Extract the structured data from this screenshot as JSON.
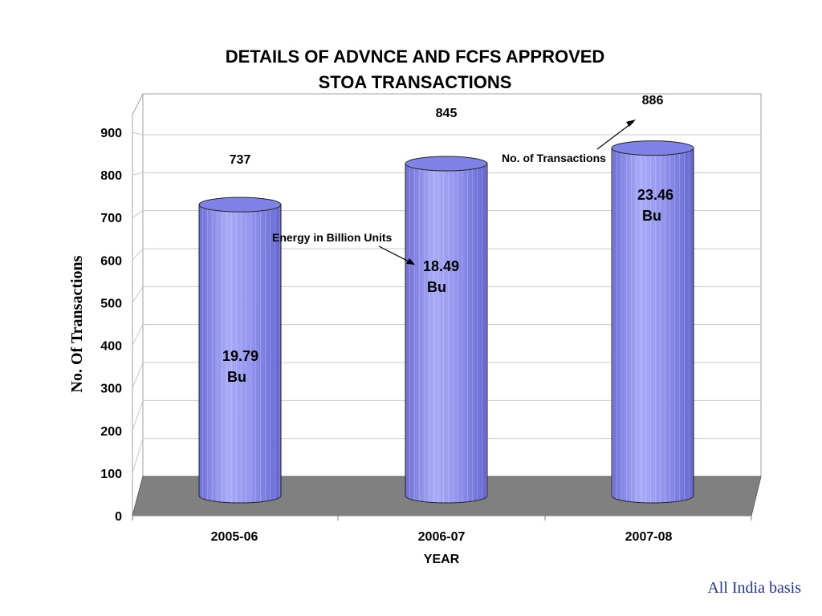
{
  "chart_data": {
    "type": "bar",
    "title": "DETAILS OF ADVNCE AND FCFS APPROVED STOA TRANSACTIONS",
    "title_lines": [
      "DETAILS OF ADVNCE AND FCFS APPROVED",
      "STOA TRANSACTIONS"
    ],
    "xlabel": "YEAR",
    "ylabel": "No. Of Transactions",
    "categories": [
      "2005-06",
      "2006-07",
      "2007-08"
    ],
    "values": [
      737,
      845,
      886
    ],
    "value_labels": [
      "737",
      "845",
      "886"
    ],
    "energy_labels": [
      [
        "19.79",
        "Bu"
      ],
      [
        "18.49",
        "Bu"
      ],
      [
        "23.46",
        "Bu"
      ]
    ],
    "ylim": [
      0,
      900
    ],
    "yticks": [
      0,
      100,
      200,
      300,
      400,
      500,
      600,
      700,
      800,
      900
    ],
    "grid": true,
    "bar_shape": "3d-cylinder",
    "annotations": {
      "energy": "Energy in Billion Units",
      "transactions": "No. of Transactions"
    }
  },
  "footer": "All India basis",
  "colors": {
    "bar": "#9a9cf2",
    "bar_dark": "#6d70d6",
    "bar_top": "#7f82e6",
    "floor": "#808080",
    "grid": "#c8c8c8"
  }
}
